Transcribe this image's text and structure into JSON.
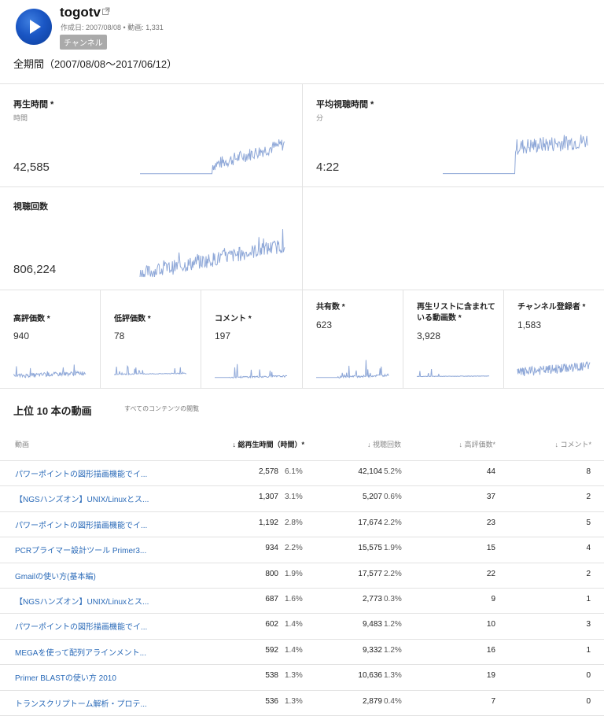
{
  "header": {
    "channel_name": "togotv",
    "meta": "作成日: 2007/08/08 • 動画: 1,331",
    "badge": "チャンネル",
    "period": "全期間（2007/08/08～2017/06/12）"
  },
  "metrics": {
    "watch_time": {
      "title": "再生時間 *",
      "unit": "時間",
      "value": "42,585"
    },
    "avg_view_duration": {
      "title": "平均視聴時間 *",
      "unit": "分",
      "value": "4:22"
    },
    "views": {
      "title": "視聴回数",
      "value": "806,224"
    }
  },
  "small_metrics": [
    {
      "title": "高評価数 *",
      "value": "940"
    },
    {
      "title": "低評価数 *",
      "value": "78"
    },
    {
      "title": "コメント *",
      "value": "197"
    },
    {
      "title": "共有数 *",
      "value": "623"
    },
    {
      "title": "再生リストに含まれている動画数 *",
      "value": "3,928"
    },
    {
      "title": "チャンネル登録者 *",
      "value": "1,583"
    }
  ],
  "top_videos": {
    "title": "上位 10 本の動画",
    "all_content_link": "すべてのコンテンツの閲覧",
    "columns": {
      "video": "動画",
      "watch_time": "総再生時間（時間）*",
      "views": "視聴回数",
      "likes": "高評価数*",
      "comments": "コメント*"
    },
    "rows": [
      {
        "title": "パワーポイントの図形描画機能でイ...",
        "watch_time": "2,578",
        "watch_pct": "6.1%",
        "views": "42,104",
        "views_pct": "5.2%",
        "likes": "44",
        "comments": "8"
      },
      {
        "title": "【NGSハンズオン】UNIX/Linuxとス...",
        "watch_time": "1,307",
        "watch_pct": "3.1%",
        "views": "5,207",
        "views_pct": "0.6%",
        "likes": "37",
        "comments": "2"
      },
      {
        "title": "パワーポイントの図形描画機能でイ...",
        "watch_time": "1,192",
        "watch_pct": "2.8%",
        "views": "17,674",
        "views_pct": "2.2%",
        "likes": "23",
        "comments": "5"
      },
      {
        "title": "PCRプライマー設計ツール Primer3...",
        "watch_time": "934",
        "watch_pct": "2.2%",
        "views": "15,575",
        "views_pct": "1.9%",
        "likes": "15",
        "comments": "4"
      },
      {
        "title": "Gmailの使い方(基本編)",
        "watch_time": "800",
        "watch_pct": "1.9%",
        "views": "17,577",
        "views_pct": "2.2%",
        "likes": "22",
        "comments": "2"
      },
      {
        "title": "【NGSハンズオン】UNIX/Linuxとス...",
        "watch_time": "687",
        "watch_pct": "1.6%",
        "views": "2,773",
        "views_pct": "0.3%",
        "likes": "9",
        "comments": "1"
      },
      {
        "title": "パワーポイントの図形描画機能でイ...",
        "watch_time": "602",
        "watch_pct": "1.4%",
        "views": "9,483",
        "views_pct": "1.2%",
        "likes": "10",
        "comments": "3"
      },
      {
        "title": "MEGAを使って配列アラインメント...",
        "watch_time": "592",
        "watch_pct": "1.4%",
        "views": "9,332",
        "views_pct": "1.2%",
        "likes": "16",
        "comments": "1"
      },
      {
        "title": "Primer BLASTの使い方 2010",
        "watch_time": "538",
        "watch_pct": "1.3%",
        "views": "10,636",
        "views_pct": "1.3%",
        "likes": "19",
        "comments": "0"
      },
      {
        "title": "トランスクリプトーム解析・プロテ...",
        "watch_time": "536",
        "watch_pct": "1.3%",
        "views": "2,879",
        "views_pct": "0.4%",
        "likes": "7",
        "comments": "0"
      }
    ]
  },
  "colors": {
    "spark": "#8fa8d8",
    "link": "#2a6ab8",
    "avatar": "#1a56c4"
  },
  "icons": {
    "avatar": "play-icon",
    "external": "external-link-icon",
    "sort": "arrow-down-icon"
  }
}
